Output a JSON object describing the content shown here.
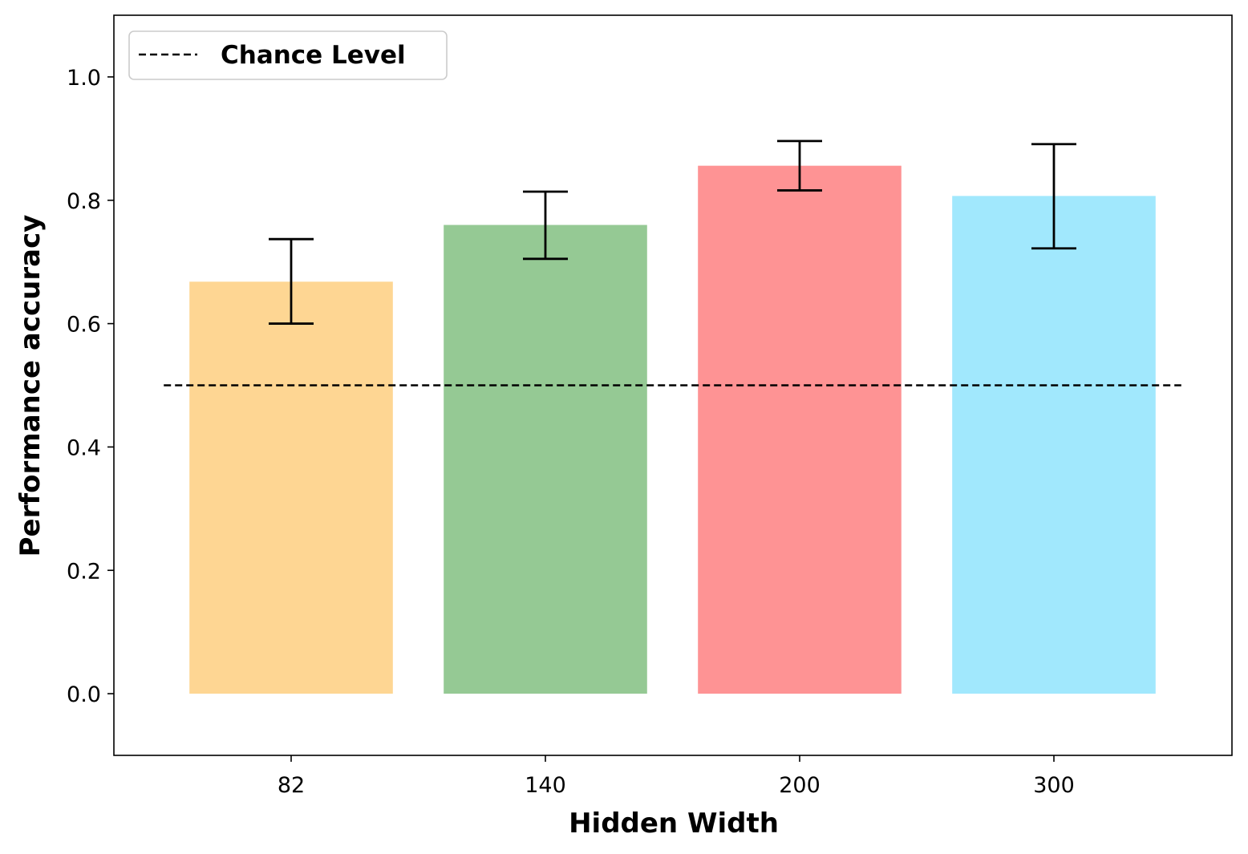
{
  "chart_data": {
    "type": "bar",
    "categories": [
      "82",
      "140",
      "200",
      "300"
    ],
    "values": [
      0.668,
      0.76,
      0.856,
      0.807
    ],
    "errors_low": [
      0.6,
      0.705,
      0.816,
      0.722
    ],
    "errors_high": [
      0.737,
      0.814,
      0.896,
      0.891
    ],
    "colors": [
      "#fed693",
      "#95c994",
      "#fe9394",
      "#a1e8fd"
    ],
    "xlabel": "Hidden Width",
    "ylabel": "Performance accuracy",
    "ylim": [
      -0.1,
      1.1
    ],
    "yticks": [
      "0.0",
      "0.2",
      "0.4",
      "0.6",
      "0.8",
      "1.0"
    ],
    "reference_line": {
      "name": "Chance Level",
      "value": 0.5,
      "style": "dashed",
      "color": "#000000"
    },
    "legend": {
      "position": "top-left",
      "entries": [
        "Chance Level"
      ]
    },
    "grid": false
  }
}
